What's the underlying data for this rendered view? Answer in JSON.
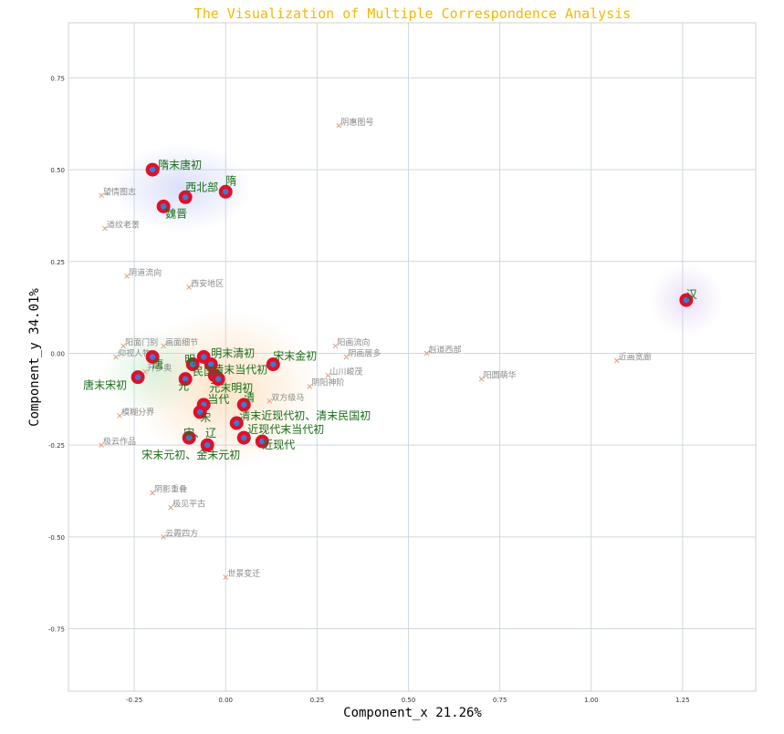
{
  "chart_data": {
    "type": "scatter",
    "title": "The Visualization of Multiple Correspondence Analysis",
    "xlabel": "Component_x 21.26%",
    "ylabel": "Component_y 34.01%",
    "xlim": [
      -0.43,
      1.45
    ],
    "ylim": [
      -0.92,
      0.9
    ],
    "xticks": [
      -0.25,
      0.0,
      0.25,
      0.5,
      0.75,
      1.0,
      1.25
    ],
    "xtick_labels": [
      "-0.25",
      "0.00",
      "0.25",
      "0.50",
      "0.75",
      "1.00",
      "1.25"
    ],
    "yticks": [
      0.75,
      0.5,
      0.25,
      0.0,
      -0.25,
      -0.5,
      -0.75
    ],
    "ytick_labels": [
      "0.75",
      "0.50",
      "0.25",
      "0.00",
      "-0.25",
      "-0.50",
      "-0.75"
    ],
    "grid": true,
    "colors": {
      "title": "#f5b800",
      "point_fill": "#e0102a",
      "point_center": "#3a7bd5",
      "category_text": "#1b6e1b",
      "keyword_text": "#8a8a8a",
      "keyword_marker": "#e0a080",
      "halo_blue": "#aab8f0",
      "halo_orange": "#f8c890",
      "halo_green": "#b8e8c0",
      "halo_purple": "#d8c8f0"
    },
    "halos": [
      {
        "x": -0.12,
        "y": 0.45,
        "rx": 0.19,
        "ry": 0.12,
        "color": "halo_blue"
      },
      {
        "x": 0.0,
        "y": -0.1,
        "rx": 0.26,
        "ry": 0.22,
        "color": "halo_orange"
      },
      {
        "x": -0.2,
        "y": -0.05,
        "rx": 0.14,
        "ry": 0.12,
        "color": "halo_green"
      },
      {
        "x": 1.26,
        "y": 0.145,
        "rx": 0.1,
        "ry": 0.1,
        "color": "halo_purple"
      }
    ],
    "categories": [
      {
        "label": "隋末唐初",
        "x": -0.2,
        "y": 0.5,
        "dx": 6,
        "dy": -1
      },
      {
        "label": "西北部",
        "x": -0.11,
        "y": 0.425,
        "dx": 0,
        "dy": -7
      },
      {
        "label": "隋",
        "x": 0.0,
        "y": 0.44,
        "dx": 0,
        "dy": -8
      },
      {
        "label": "魏晋",
        "x": -0.17,
        "y": 0.4,
        "dx": 2,
        "dy": 12
      },
      {
        "label": "汉",
        "x": 1.26,
        "y": 0.145,
        "dx": 0,
        "dy": -2
      },
      {
        "label": "宋末金初",
        "x": 0.13,
        "y": -0.03,
        "dx": 0,
        "dy": -5
      },
      {
        "label": "明末清初",
        "x": -0.06,
        "y": -0.01,
        "dx": 8,
        "dy": 0
      },
      {
        "label": "唐",
        "x": -0.2,
        "y": -0.01,
        "dx": 0,
        "dy": 12
      },
      {
        "label": "明",
        "x": -0.09,
        "y": -0.03,
        "dx": -9,
        "dy": -1
      },
      {
        "label": "民国",
        "x": -0.04,
        "y": -0.03,
        "dx": -20,
        "dy": 12
      },
      {
        "label": "清末当代初",
        "x": -0.03,
        "y": -0.06,
        "dx": -2,
        "dy": -2
      },
      {
        "label": "元末明初",
        "x": -0.02,
        "y": -0.07,
        "dx": -10,
        "dy": 14
      },
      {
        "label": "元",
        "x": -0.11,
        "y": -0.07,
        "dx": -8,
        "dy": 12
      },
      {
        "label": "唐末宋初",
        "x": -0.24,
        "y": -0.065,
        "dx": -60,
        "dy": 13
      },
      {
        "label": "当代",
        "x": -0.06,
        "y": -0.14,
        "dx": 4,
        "dy": -2
      },
      {
        "label": "清",
        "x": 0.05,
        "y": -0.14,
        "dx": 0,
        "dy": -4
      },
      {
        "label": "清末近现代初、清末民国初",
        "x": 0.03,
        "y": -0.19,
        "dx": 3,
        "dy": -4
      },
      {
        "label": "宋",
        "x": -0.07,
        "y": -0.16,
        "dx": 0,
        "dy": 10
      },
      {
        "label": "宋、辽",
        "x": -0.1,
        "y": -0.23,
        "dx": -6,
        "dy": -1
      },
      {
        "label": "近现代末当代初",
        "x": 0.05,
        "y": -0.23,
        "dx": 4,
        "dy": -5
      },
      {
        "label": "近现代",
        "x": 0.1,
        "y": -0.24,
        "dx": 0,
        "dy": 8
      },
      {
        "label": "宋末元初、金末元初",
        "x": -0.05,
        "y": -0.25,
        "dx": -72,
        "dy": 15
      }
    ],
    "keywords": [
      {
        "label": "阴惠图号",
        "x": 0.31,
        "y": 0.62
      },
      {
        "label": "望情图志",
        "x": -0.34,
        "y": 0.43
      },
      {
        "label": "道纹老景",
        "x": -0.33,
        "y": 0.34
      },
      {
        "label": "阴道流向",
        "x": -0.27,
        "y": 0.21
      },
      {
        "label": "西安地区",
        "x": -0.1,
        "y": 0.18
      },
      {
        "label": "阳面门别",
        "x": -0.28,
        "y": 0.02
      },
      {
        "label": "画面细节",
        "x": -0.17,
        "y": 0.02
      },
      {
        "label": "仰视人物",
        "x": -0.3,
        "y": -0.01
      },
      {
        "label": "开多奥",
        "x": -0.22,
        "y": -0.05
      },
      {
        "label": "阳画流向",
        "x": 0.3,
        "y": 0.02
      },
      {
        "label": "阴画居多",
        "x": 0.33,
        "y": -0.01
      },
      {
        "label": "山川峻茂",
        "x": 0.28,
        "y": -0.06
      },
      {
        "label": "阴阳神阶",
        "x": 0.23,
        "y": -0.09
      },
      {
        "label": "双方级马",
        "x": 0.12,
        "y": -0.13
      },
      {
        "label": "赳道西部",
        "x": 0.55,
        "y": 0.0
      },
      {
        "label": "阳圆萌华",
        "x": 0.7,
        "y": -0.07
      },
      {
        "label": "近画宽廊",
        "x": 1.07,
        "y": -0.02
      },
      {
        "label": "模糊分界",
        "x": -0.29,
        "y": -0.17
      },
      {
        "label": "极云作品",
        "x": -0.34,
        "y": -0.25
      },
      {
        "label": "阴影重叠",
        "x": -0.2,
        "y": -0.38
      },
      {
        "label": "极见平古",
        "x": -0.15,
        "y": -0.42
      },
      {
        "label": "云霞四方",
        "x": -0.17,
        "y": -0.5
      },
      {
        "label": "世景变迁",
        "x": 0.0,
        "y": -0.61
      }
    ]
  }
}
